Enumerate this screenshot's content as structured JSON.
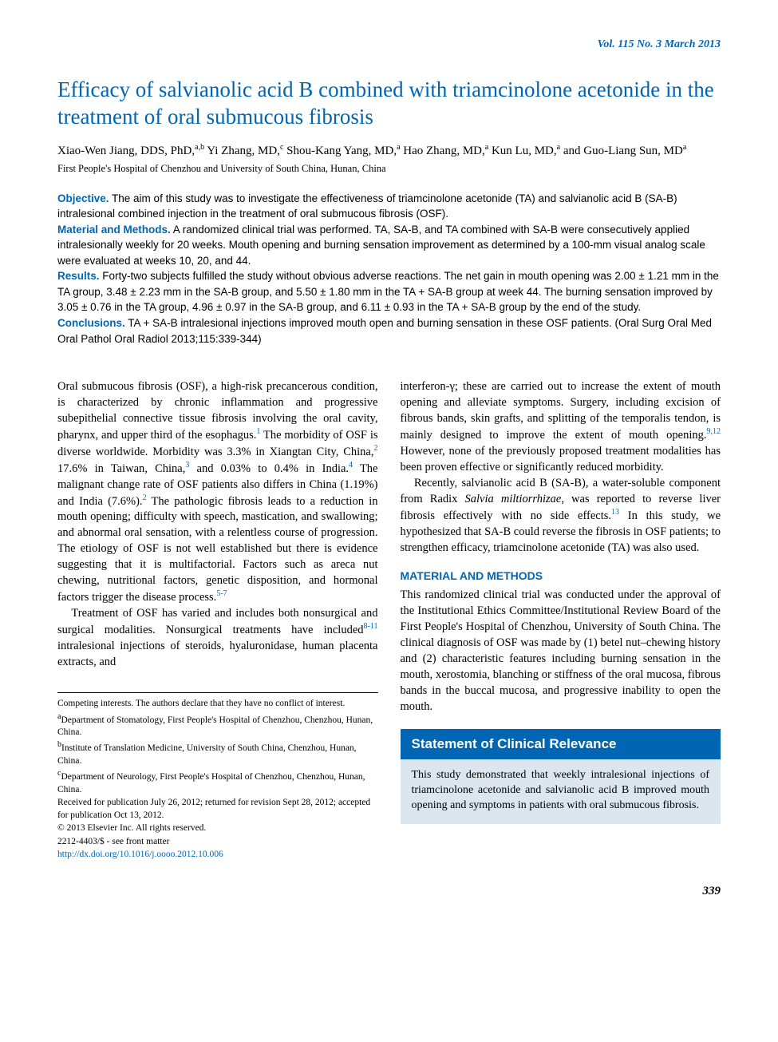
{
  "journal_header": "Vol. 115 No. 3 March 2013",
  "title": "Efficacy of salvianolic acid B combined with triamcinolone acetonide in the treatment of oral submucous fibrosis",
  "authors_html": "Xiao-Wen Jiang, DDS, PhD,<sup>a,b</sup> Yi Zhang, MD,<sup>c</sup> Shou-Kang Yang, MD,<sup>a</sup> Hao Zhang, MD,<sup>a</sup> Kun Lu, MD,<sup>a</sup> and Guo-Liang Sun, MD<sup>a</sup>",
  "affiliation_line": "First People's Hospital of Chenzhou and University of South China, Hunan, China",
  "abstract": {
    "objective_label": "Objective.",
    "objective": " The aim of this study was to investigate the effectiveness of triamcinolone acetonide (TA) and salvianolic acid B (SA-B) intralesional combined injection in the treatment of oral submucous fibrosis (OSF).",
    "material_label": "Material and Methods.",
    "material": " A randomized clinical trial was performed. TA, SA-B, and TA combined with SA-B were consecutively applied intralesionally weekly for 20 weeks. Mouth opening and burning sensation improvement as determined by a 100-mm visual analog scale were evaluated at weeks 10, 20, and 44.",
    "results_label": "Results.",
    "results": " Forty-two subjects fulfilled the study without obvious adverse reactions. The net gain in mouth opening was 2.00 ± 1.21 mm in the TA group, 3.48 ± 2.23 mm in the SA-B group, and 5.50 ± 1.80 mm in the TA + SA-B group at week 44. The burning sensation improved by 3.05 ± 0.76 in the TA group, 4.96 ± 0.97 in the SA-B group, and 6.11 ± 0.93 in the TA + SA-B group by the end of the study.",
    "conclusions_label": "Conclusions.",
    "conclusions": " TA + SA-B intralesional injections improved mouth open and burning sensation in these OSF patients. (Oral Surg Oral Med Oral Pathol Oral Radiol 2013;115:339-344)"
  },
  "body": {
    "left": {
      "p1_html": "Oral submucous fibrosis (OSF), a high-risk precancerous condition, is characterized by chronic inflammation and progressive subepithelial connective tissue fibrosis involving the oral cavity, pharynx, and upper third of the esophagus.<sup>1</sup> The morbidity of OSF is diverse worldwide. Morbidity was 3.3% in Xiangtan City, China,<sup>2</sup> 17.6% in Taiwan, China,<sup>3</sup> and 0.03% to 0.4% in India.<sup>4</sup> The malignant change rate of OSF patients also differs in China (1.19%) and India (7.6%).<sup>2</sup> The pathologic fibrosis leads to a reduction in mouth opening; difficulty with speech, mastication, and swallowing; and abnormal oral sensation, with a relentless course of progression. The etiology of OSF is not well established but there is evidence suggesting that it is multifactorial. Factors such as areca nut chewing, nutritional factors, genetic disposition, and hormonal factors trigger the disease process.<sup>5-7</sup>",
      "p2_html": "Treatment of OSF has varied and includes both nonsurgical and surgical modalities. Nonsurgical treatments have included<sup>8-11</sup> intralesional injections of steroids, hyaluronidase, human placenta extracts, and"
    },
    "right": {
      "p1_html": "interferon-γ; these are carried out to increase the extent of mouth opening and alleviate symptoms. Surgery, including excision of fibrous bands, skin grafts, and splitting of the temporalis tendon, is mainly designed to improve the extent of mouth opening.<sup>9,12</sup> However, none of the previously proposed treatment modalities has been proven effective or significantly reduced morbidity.",
      "p2_html": "Recently, salvianolic acid B (SA-B), a water-soluble component from Radix <span class=\"ital\">Salvia miltiorrhizae</span>, was reported to reverse liver fibrosis effectively with no side effects.<sup>13</sup> In this study, we hypothesized that SA-B could reverse the fibrosis in OSF patients; to strengthen efficacy, triamcinolone acetonide (TA) was also used.",
      "methods_heading": "MATERIAL AND METHODS",
      "methods_p1": "This randomized clinical trial was conducted under the approval of the Institutional Ethics Committee/Institutional Review Board of the First People's Hospital of Chenzhou, University of South China. The clinical diagnosis of OSF was made by (1) betel nut–chewing history and (2) characteristic features including burning sensation in the mouth, xerostomia, blanching or stiffness of the oral mucosa, fibrous bands in the buccal mucosa, and progressive inability to open the mouth."
    }
  },
  "footnotes": {
    "competing": "Competing interests. The authors declare that they have no conflict of interest.",
    "a": "Department of Stomatology, First People's Hospital of Chenzhou, Chenzhou, Hunan, China.",
    "b": "Institute of Translation Medicine, University of South China, Chenzhou, Hunan, China.",
    "c": "Department of Neurology, First People's Hospital of Chenzhou, Chenzhou, Hunan, China.",
    "received": "Received for publication July 26, 2012; returned for revision Sept 28, 2012; accepted for publication Oct 13, 2012.",
    "copyright": "© 2013 Elsevier Inc. All rights reserved.",
    "issn": "2212-4403/$ - see front matter",
    "doi": "http://dx.doi.org/10.1016/j.oooo.2012.10.006"
  },
  "relevance": {
    "heading": "Statement of Clinical Relevance",
    "body": "This study demonstrated that weekly intralesional injections of triamcinolone acetonide and salvianolic acid B improved mouth opening and symptoms in patients with oral submucous fibrosis."
  },
  "page_number": "339",
  "colors": {
    "brand_blue": "#0066b3",
    "box_bg": "#dce6ef",
    "text": "#000000",
    "page_bg": "#ffffff"
  }
}
